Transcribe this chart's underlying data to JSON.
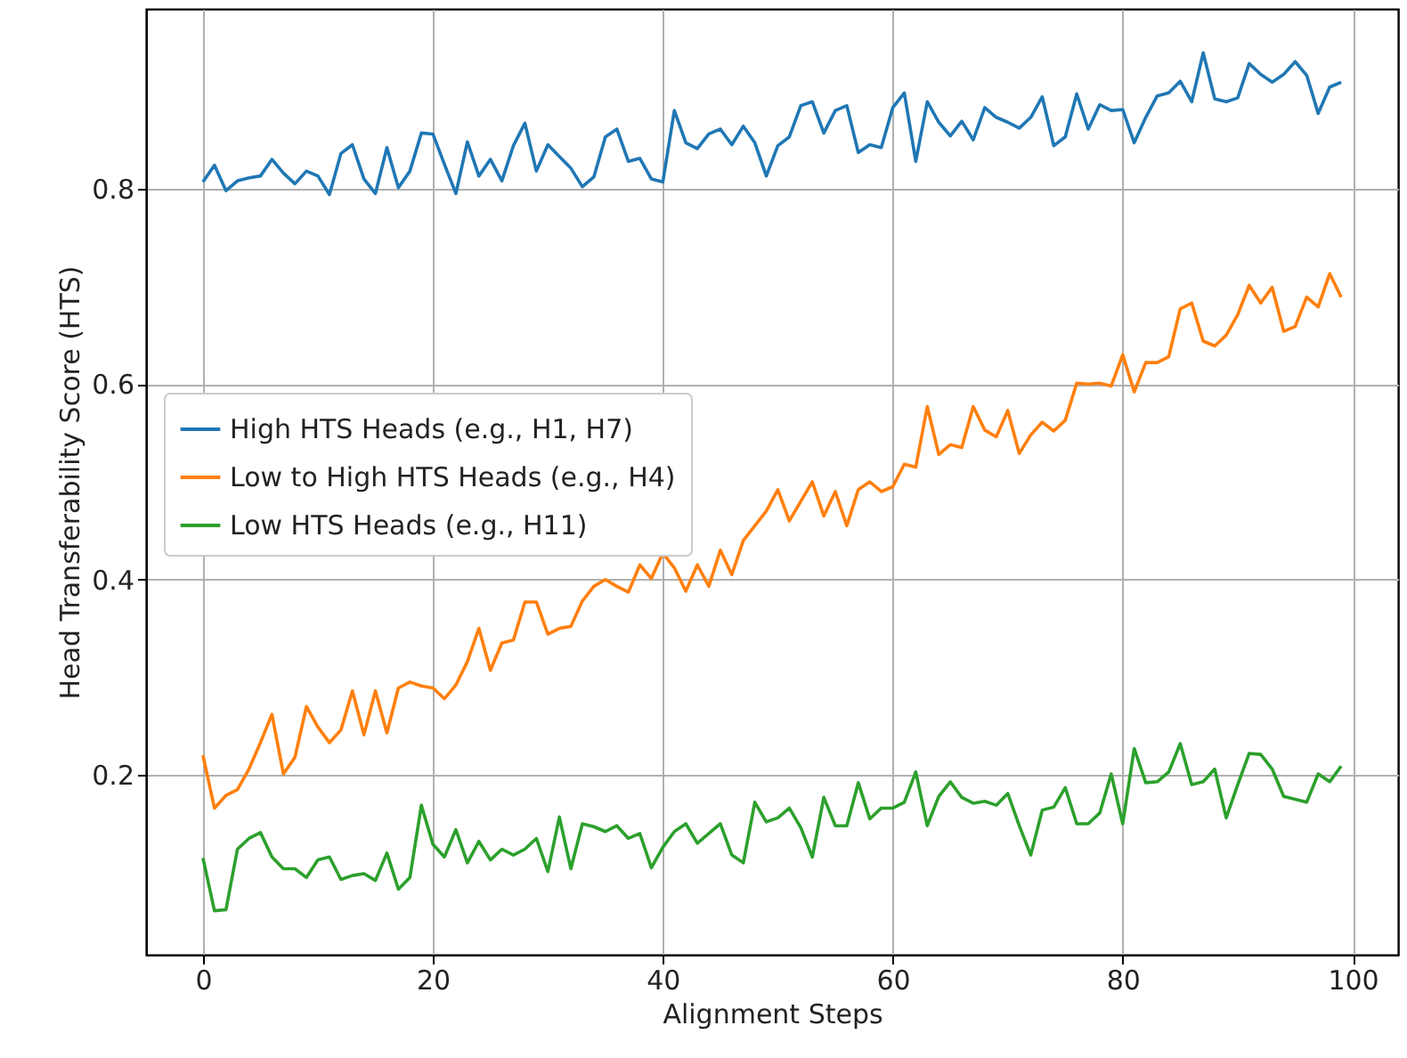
{
  "chart_data": {
    "type": "line",
    "xlabel": "Alignment Steps",
    "ylabel": "Head Transferability Score (HTS)",
    "x": [
      0,
      1,
      2,
      3,
      4,
      5,
      6,
      7,
      8,
      9,
      10,
      11,
      12,
      13,
      14,
      15,
      16,
      17,
      18,
      19,
      20,
      21,
      22,
      23,
      24,
      25,
      26,
      27,
      28,
      29,
      30,
      31,
      32,
      33,
      34,
      35,
      36,
      37,
      38,
      39,
      40,
      41,
      42,
      43,
      44,
      45,
      46,
      47,
      48,
      49,
      50,
      51,
      52,
      53,
      54,
      55,
      56,
      57,
      58,
      59,
      60,
      61,
      62,
      63,
      64,
      65,
      66,
      67,
      68,
      69,
      70,
      71,
      72,
      73,
      74,
      75,
      76,
      77,
      78,
      79,
      80,
      81,
      82,
      83,
      84,
      85,
      86,
      87,
      88,
      89,
      90,
      91,
      92,
      93,
      94,
      95,
      96,
      97,
      98,
      99
    ],
    "series": [
      {
        "name": "High HTS Heads (e.g., H1, H7)",
        "color": "#1f77b4",
        "values": [
          0.807,
          0.824,
          0.798,
          0.808,
          0.811,
          0.813,
          0.83,
          0.816,
          0.805,
          0.818,
          0.813,
          0.794,
          0.836,
          0.845,
          0.81,
          0.795,
          0.842,
          0.801,
          0.818,
          0.857,
          0.856,
          0.825,
          0.795,
          0.848,
          0.813,
          0.83,
          0.808,
          0.844,
          0.867,
          0.818,
          0.845,
          0.833,
          0.821,
          0.802,
          0.812,
          0.853,
          0.861,
          0.828,
          0.831,
          0.81,
          0.807,
          0.88,
          0.847,
          0.841,
          0.856,
          0.861,
          0.845,
          0.864,
          0.847,
          0.813,
          0.844,
          0.853,
          0.885,
          0.889,
          0.857,
          0.88,
          0.885,
          0.837,
          0.845,
          0.842,
          0.883,
          0.898,
          0.828,
          0.889,
          0.868,
          0.854,
          0.869,
          0.85,
          0.883,
          0.873,
          0.868,
          0.862,
          0.873,
          0.894,
          0.844,
          0.853,
          0.897,
          0.861,
          0.886,
          0.88,
          0.881,
          0.847,
          0.873,
          0.895,
          0.898,
          0.91,
          0.889,
          0.939,
          0.892,
          0.889,
          0.893,
          0.928,
          0.917,
          0.909,
          0.917,
          0.93,
          0.916,
          0.877,
          0.904,
          0.909
        ]
      },
      {
        "name": "Low to High HTS Heads (e.g., H4)",
        "color": "#ff7f0e",
        "values": [
          0.22,
          0.166,
          0.179,
          0.185,
          0.206,
          0.233,
          0.262,
          0.201,
          0.218,
          0.27,
          0.249,
          0.233,
          0.246,
          0.286,
          0.241,
          0.286,
          0.243,
          0.289,
          0.295,
          0.291,
          0.289,
          0.278,
          0.292,
          0.316,
          0.35,
          0.307,
          0.335,
          0.338,
          0.377,
          0.377,
          0.344,
          0.35,
          0.352,
          0.378,
          0.393,
          0.4,
          0.393,
          0.387,
          0.415,
          0.401,
          0.427,
          0.412,
          0.388,
          0.415,
          0.393,
          0.43,
          0.405,
          0.44,
          0.455,
          0.47,
          0.492,
          0.46,
          0.48,
          0.5,
          0.465,
          0.49,
          0.455,
          0.492,
          0.5,
          0.49,
          0.495,
          0.518,
          0.515,
          0.577,
          0.528,
          0.538,
          0.535,
          0.577,
          0.553,
          0.546,
          0.573,
          0.529,
          0.548,
          0.561,
          0.552,
          0.563,
          0.601,
          0.6,
          0.601,
          0.598,
          0.63,
          0.592,
          0.622,
          0.622,
          0.628,
          0.677,
          0.683,
          0.644,
          0.639,
          0.65,
          0.671,
          0.701,
          0.683,
          0.699,
          0.654,
          0.659,
          0.689,
          0.679,
          0.713,
          0.689
        ]
      },
      {
        "name": "Low HTS Heads (e.g., H11)",
        "color": "#2ca02c",
        "values": [
          0.115,
          0.061,
          0.062,
          0.124,
          0.135,
          0.141,
          0.116,
          0.104,
          0.104,
          0.095,
          0.113,
          0.116,
          0.093,
          0.097,
          0.099,
          0.092,
          0.12,
          0.083,
          0.095,
          0.169,
          0.129,
          0.116,
          0.144,
          0.11,
          0.132,
          0.113,
          0.124,
          0.118,
          0.124,
          0.135,
          0.101,
          0.157,
          0.104,
          0.15,
          0.147,
          0.142,
          0.148,
          0.135,
          0.14,
          0.105,
          0.126,
          0.142,
          0.15,
          0.13,
          0.14,
          0.15,
          0.118,
          0.11,
          0.172,
          0.152,
          0.156,
          0.166,
          0.146,
          0.116,
          0.177,
          0.148,
          0.148,
          0.192,
          0.155,
          0.166,
          0.166,
          0.172,
          0.203,
          0.148,
          0.178,
          0.193,
          0.177,
          0.171,
          0.173,
          0.169,
          0.181,
          0.148,
          0.118,
          0.164,
          0.167,
          0.187,
          0.15,
          0.15,
          0.161,
          0.201,
          0.15,
          0.227,
          0.192,
          0.193,
          0.203,
          0.232,
          0.19,
          0.193,
          0.206,
          0.156,
          0.19,
          0.222,
          0.221,
          0.206,
          0.178,
          0.175,
          0.172,
          0.201,
          0.193,
          0.209
        ]
      }
    ],
    "xlim": [
      -4.95,
      103.95
    ],
    "ylim": [
      0.016,
      0.984
    ],
    "xticks": [
      0,
      20,
      40,
      60,
      80,
      100
    ],
    "yticks": [
      0.2,
      0.4,
      0.6,
      0.8
    ],
    "grid": true,
    "legend": "center left",
    "marker": "none",
    "line_style": "solid"
  }
}
